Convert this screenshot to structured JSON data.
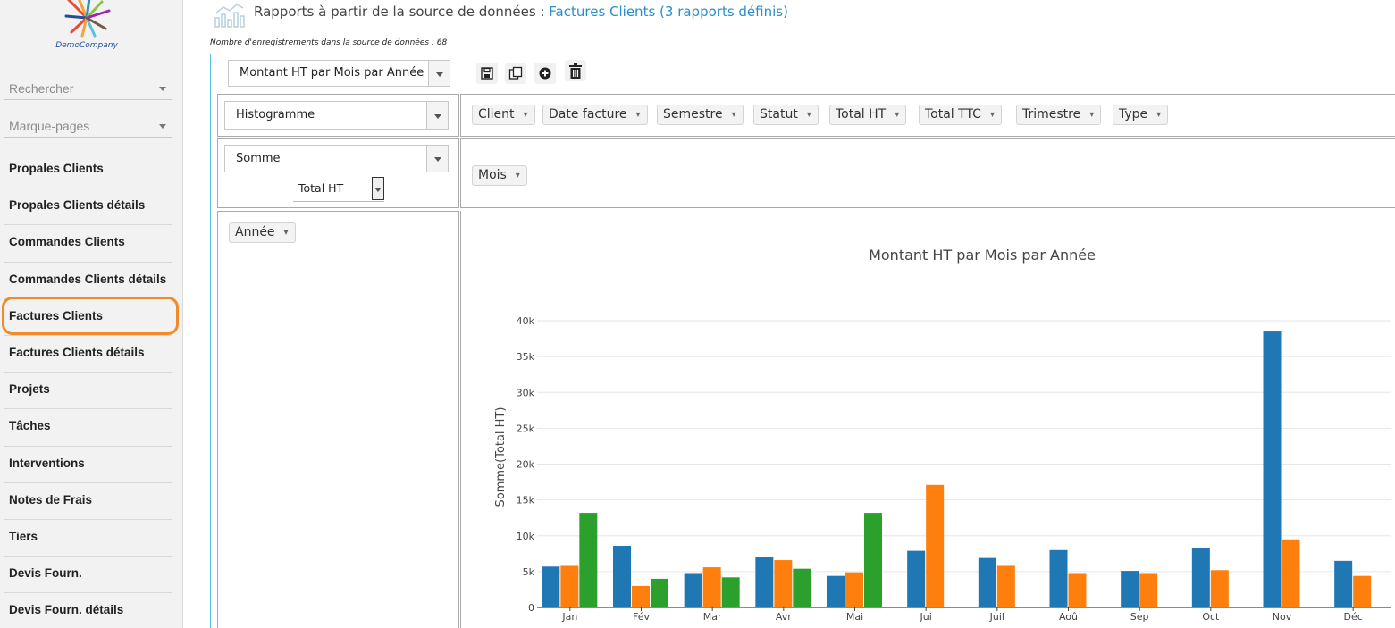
{
  "sidebar": {
    "logo_text": "DemoCompany",
    "search_label": "Rechercher",
    "bookmarks_label": "Marque-pages",
    "items": [
      "Propales Clients",
      "Propales Clients détails",
      "Commandes Clients",
      "Commandes Clients détails",
      "Factures Clients",
      "Factures Clients détails",
      "Projets",
      "Tâches",
      "Interventions",
      "Notes de Frais",
      "Tiers",
      "Devis Fourn.",
      "Devis Fourn. détails"
    ],
    "highlighted_item": "Factures Clients",
    "highlight_color": "#f08a2b"
  },
  "header": {
    "title_prefix": "Rapports à partir de la source de données :",
    "title_link": "Factures Clients (3 rapports définis)",
    "records_count": "Nombre d'enregistrements dans la source de données : 68"
  },
  "toolbar": {
    "report_name": "Montant HT par Mois par Année",
    "icons": [
      "save-icon",
      "copy-icon",
      "add-icon",
      "delete-icon"
    ]
  },
  "pivot": {
    "renderer": "Histogramme",
    "aggregator": "Somme",
    "aggregator_attribute": "Total HT",
    "unused_attributes": [
      "Client",
      "Date facture",
      "Semestre",
      "Statut",
      "Total HT",
      "Total TTC",
      "Trimestre",
      "Type"
    ],
    "column_attributes": [
      "Mois"
    ],
    "row_attributes": [
      "Année"
    ]
  },
  "chart_data": {
    "type": "bar",
    "title": "Montant HT par Mois par Année",
    "ylabel": "Somme(Total HT)",
    "xlabel": "",
    "ylim": [
      0,
      42000
    ],
    "yticks": [
      0,
      5000,
      10000,
      15000,
      20000,
      25000,
      30000,
      35000,
      40000
    ],
    "ytick_labels": [
      "0",
      "5k",
      "10k",
      "15k",
      "20k",
      "25k",
      "30k",
      "35k",
      "40k"
    ],
    "grid": true,
    "categories": [
      "Jan",
      "Fév",
      "Mar",
      "Avr",
      "Mai",
      "Jui",
      "Juil",
      "Aoû",
      "Sep",
      "Oct",
      "Nov",
      "Déc"
    ],
    "series": [
      {
        "color": "#1f77b4",
        "values": [
          5700,
          8600,
          4800,
          7000,
          4400,
          7900,
          6900,
          8000,
          5100,
          8300,
          38500,
          6500
        ]
      },
      {
        "color": "#ff7f0e",
        "values": [
          5800,
          3000,
          5600,
          6600,
          4900,
          17100,
          5800,
          4800,
          4800,
          5200,
          9500,
          4400
        ]
      },
      {
        "color": "#2ca02c",
        "values": [
          13200,
          4000,
          4200,
          5400,
          13200,
          null,
          null,
          null,
          null,
          null,
          null,
          null
        ]
      }
    ]
  }
}
